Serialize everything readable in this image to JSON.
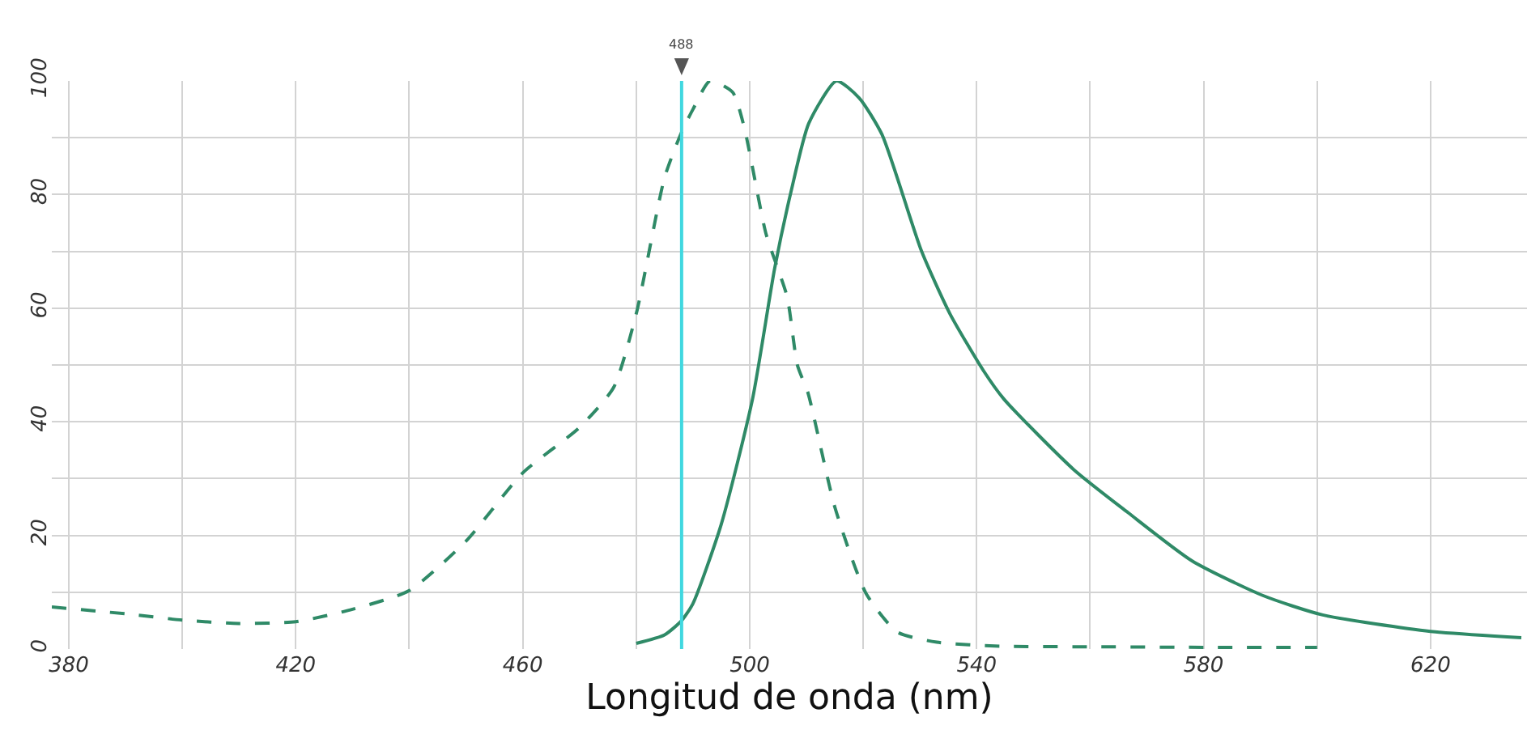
{
  "chart_data": {
    "type": "line",
    "xlabel": "Longitud de onda (nm)",
    "xlim": [
      377,
      637
    ],
    "ylim": [
      0,
      100
    ],
    "xticks": [
      380,
      {
        "value": 400,
        "label": null
      },
      420,
      {
        "value": 440,
        "label": null
      },
      460,
      {
        "value": 480,
        "label": null
      },
      500,
      {
        "value": 520,
        "label": null
      },
      540,
      {
        "value": 560,
        "label": null
      },
      580,
      {
        "value": 600,
        "label": null
      },
      620
    ],
    "yticks": [
      0,
      {
        "value": 10,
        "label": null
      },
      20,
      {
        "value": 30,
        "label": null
      },
      40,
      {
        "value": 50,
        "label": null
      },
      60,
      {
        "value": 70,
        "label": null
      },
      80,
      {
        "value": 90,
        "label": null
      },
      100
    ],
    "grid": true,
    "marker": "none",
    "series": [
      {
        "color": "#2f8a67",
        "line_style": "dashed",
        "x": [
          377,
          390,
          400,
          410,
          420,
          430,
          440,
          450,
          460,
          470,
          476,
          480,
          485,
          488,
          490,
          493,
          497,
          499,
          502.9,
          506.6,
          508.4,
          510.3,
          515,
          520.5,
          526,
          533,
          544,
          560,
          580,
          600
        ],
        "values": [
          7.4,
          6.2,
          5.1,
          4.5,
          4.8,
          7,
          10.3,
          19,
          31,
          39,
          46,
          59,
          83,
          91,
          95,
          100,
          98,
          92,
          73,
          62,
          50,
          45,
          25,
          9.8,
          3,
          1.2,
          0.5,
          0.4,
          0.3,
          0.3
        ]
      },
      {
        "color": "#2f8a67",
        "line_style": "solid",
        "x": [
          480,
          485,
          488,
          490,
          495,
          500.5,
          504.4,
          507.4,
          510.4,
          515.3,
          519.3,
          523.3,
          530.3,
          535.3,
          541.2,
          544.8,
          557.1,
          566.7,
          578,
          590.5,
          601,
          620,
          636
        ],
        "values": [
          1,
          2.5,
          5,
          8,
          22,
          44,
          67,
          81,
          92.5,
          100,
          97,
          90.6,
          70,
          59,
          49,
          44,
          31.6,
          24,
          15.5,
          9.4,
          6,
          3.1,
          2
        ]
      }
    ],
    "ref_lines": [
      {
        "axis": "x",
        "value": 488,
        "label": "488",
        "color": "#40d8e0"
      }
    ]
  }
}
